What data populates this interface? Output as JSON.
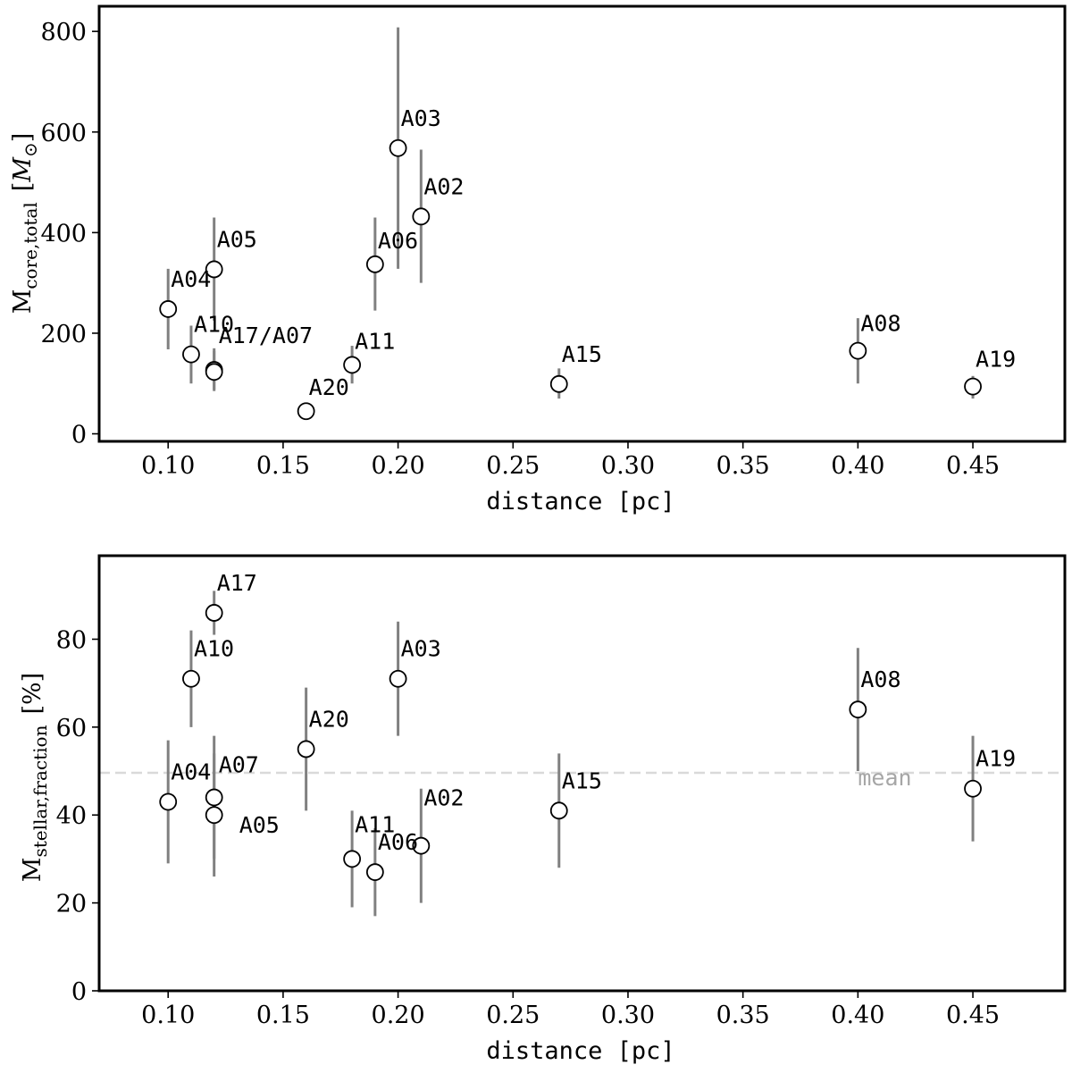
{
  "chart_data": [
    {
      "type": "scatter",
      "xlabel": "distance [pc]",
      "ylabel": {
        "main": "M",
        "sub": "core,total",
        "unit_open": "[",
        "unit_symbol": "M",
        "unit_sub": "⊙",
        "unit_close": "]"
      },
      "xlim": [
        0.07,
        0.49
      ],
      "ylim": [
        -15,
        850
      ],
      "xticks": [
        0.1,
        0.15,
        0.2,
        0.25,
        0.3,
        0.35,
        0.4,
        0.45
      ],
      "xtick_labels": [
        "0.10",
        "0.15",
        "0.20",
        "0.25",
        "0.30",
        "0.35",
        "0.40",
        "0.45"
      ],
      "yticks": [
        0,
        200,
        400,
        600,
        800
      ],
      "ytick_labels": [
        "0",
        "200",
        "400",
        "600",
        "800"
      ],
      "points": [
        {
          "label": "A04",
          "x": 0.1,
          "y": 248,
          "err_low": 168,
          "err_high": 328
        },
        {
          "label": "A10",
          "x": 0.11,
          "y": 158,
          "err_low": 100,
          "err_high": 215
        },
        {
          "label": "A05",
          "x": 0.12,
          "y": 327,
          "err_low": 225,
          "err_high": 430
        },
        {
          "label": "A17/A07",
          "x": 0.12,
          "y": 127,
          "err_low": 88,
          "err_high": 170
        },
        {
          "label": "",
          "x": 0.12,
          "y": 123,
          "err_low": 85,
          "err_high": 165
        },
        {
          "label": "A20",
          "x": 0.16,
          "y": 45,
          "err_low": 30,
          "err_high": 60
        },
        {
          "label": "A11",
          "x": 0.18,
          "y": 137,
          "err_low": 100,
          "err_high": 175
        },
        {
          "label": "A06",
          "x": 0.19,
          "y": 337,
          "err_low": 245,
          "err_high": 430
        },
        {
          "label": "A03",
          "x": 0.2,
          "y": 568,
          "err_low": 328,
          "err_high": 808
        },
        {
          "label": "A02",
          "x": 0.21,
          "y": 432,
          "err_low": 300,
          "err_high": 565
        },
        {
          "label": "A15",
          "x": 0.27,
          "y": 99,
          "err_low": 70,
          "err_high": 130
        },
        {
          "label": "A08",
          "x": 0.4,
          "y": 165,
          "err_low": 100,
          "err_high": 230
        },
        {
          "label": "A19",
          "x": 0.45,
          "y": 94,
          "err_low": 70,
          "err_high": 115
        }
      ]
    },
    {
      "type": "scatter",
      "xlabel": "distance [pc]",
      "ylabel": {
        "main": "M",
        "sub": "stellar,fraction",
        "unit_open": "[%]"
      },
      "xlim": [
        0.07,
        0.49
      ],
      "ylim": [
        0,
        99
      ],
      "xticks": [
        0.1,
        0.15,
        0.2,
        0.25,
        0.3,
        0.35,
        0.4,
        0.45
      ],
      "xtick_labels": [
        "0.10",
        "0.15",
        "0.20",
        "0.25",
        "0.30",
        "0.35",
        "0.40",
        "0.45"
      ],
      "yticks": [
        0,
        20,
        40,
        60,
        80
      ],
      "ytick_labels": [
        "0",
        "20",
        "40",
        "60",
        "80"
      ],
      "mean": {
        "value": 49.6,
        "label": "mean"
      },
      "points": [
        {
          "label": "A04",
          "x": 0.1,
          "y": 43,
          "err_low": 29,
          "err_high": 57
        },
        {
          "label": "A10",
          "x": 0.11,
          "y": 71,
          "err_low": 60,
          "err_high": 82
        },
        {
          "label": "A17",
          "x": 0.12,
          "y": 86,
          "err_low": 81,
          "err_high": 91
        },
        {
          "label": "A07",
          "x": 0.12,
          "y": 44,
          "err_low": 30,
          "err_high": 58
        },
        {
          "label": "A05",
          "x": 0.12,
          "y": 40,
          "err_low": 26,
          "err_high": 54
        },
        {
          "label": "A20",
          "x": 0.16,
          "y": 55,
          "err_low": 41,
          "err_high": 69
        },
        {
          "label": "A11",
          "x": 0.18,
          "y": 30,
          "err_low": 19,
          "err_high": 41
        },
        {
          "label": "A06",
          "x": 0.19,
          "y": 27,
          "err_low": 17,
          "err_high": 37
        },
        {
          "label": "A03",
          "x": 0.2,
          "y": 71,
          "err_low": 58,
          "err_high": 84
        },
        {
          "label": "A02",
          "x": 0.21,
          "y": 33,
          "err_low": 20,
          "err_high": 46
        },
        {
          "label": "A15",
          "x": 0.27,
          "y": 41,
          "err_low": 28,
          "err_high": 54
        },
        {
          "label": "A08",
          "x": 0.4,
          "y": 64,
          "err_low": 50,
          "err_high": 78
        },
        {
          "label": "A19",
          "x": 0.45,
          "y": 46,
          "err_low": 34,
          "err_high": 58
        }
      ]
    }
  ]
}
